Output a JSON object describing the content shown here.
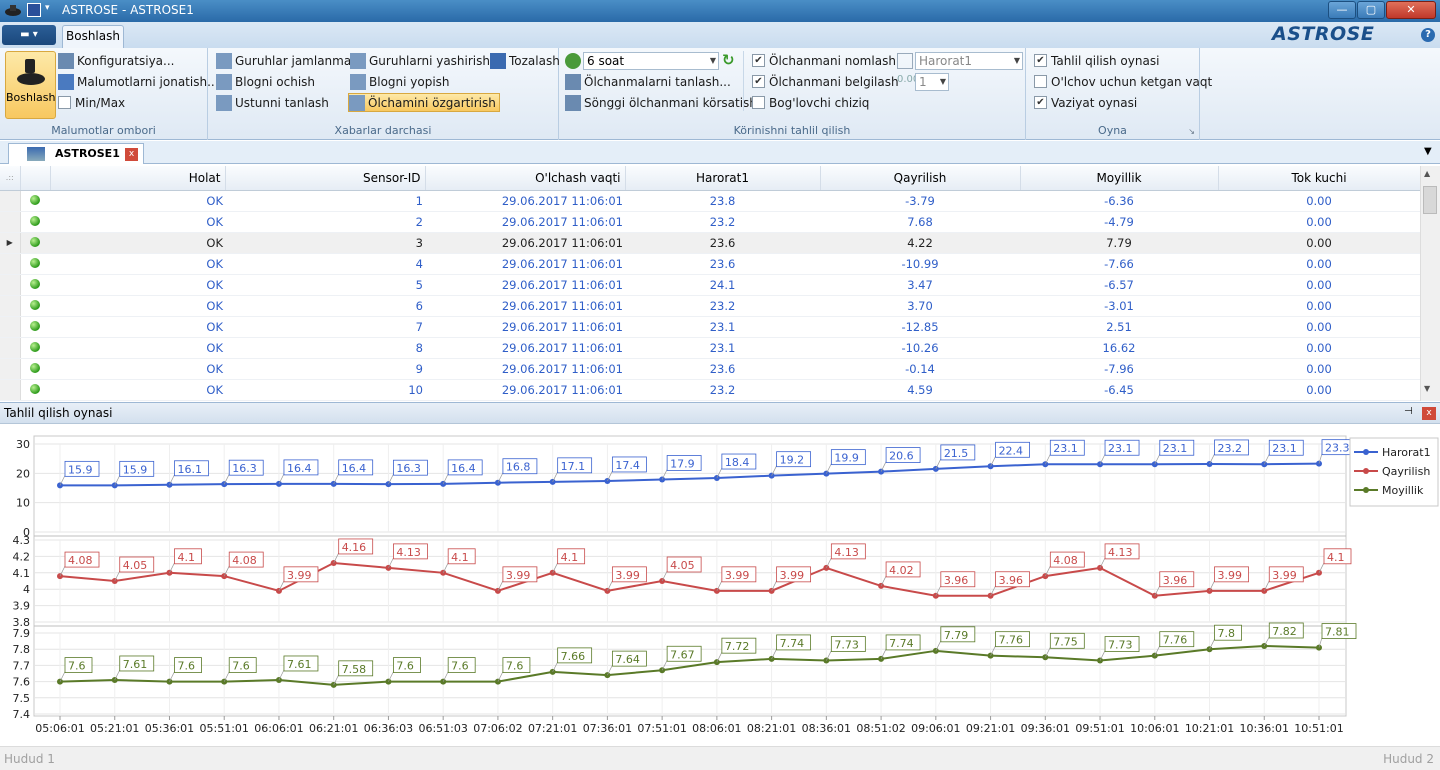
{
  "window": {
    "title": "ASTROSE - ASTROSE1",
    "minimize": "—",
    "maximize": "▢",
    "close": "✕"
  },
  "tabs": {
    "active": "Boshlash",
    "logo": "ASTROSE",
    "help": "?"
  },
  "ribbon": {
    "big_button": "Boshlash",
    "group1": {
      "label": "Malumotlar ombori",
      "items": [
        "Konfiguratsiya...",
        "Malumotlarni jonatish...",
        "Min/Max"
      ]
    },
    "group2": {
      "label": "Xabarlar darchasi",
      "col1": [
        "Guruhlar jamlanmasi",
        "Blogni ochish",
        "Ustunni tanlash"
      ],
      "col2": [
        "Guruhlarni yashirish",
        "Blogni yopish",
        "Ölchamini özgartirish"
      ],
      "col3": [
        "Tozalash"
      ]
    },
    "group3": {
      "label": "Körinishni tahlil qilish",
      "period": "6 soat",
      "items": [
        "Ölchanmalarni tanlash...",
        "Sönggi ölchanmani körsatish"
      ],
      "checks": [
        "Ölchanmani nomlash",
        "Ölchanmani belgilash",
        "Bog'lovchi chiziq"
      ],
      "sensor_combo": "Harorat1",
      "count_combo": "1"
    },
    "group4": {
      "label": "Oyna",
      "checks": [
        "Tahlil qilish oynasi",
        "O'lchov uchun ketgan vaqt",
        "Vaziyat oynasi"
      ]
    }
  },
  "document": {
    "tab": "ASTROSE1"
  },
  "table": {
    "columns": [
      "Holat",
      "Sensor-ID",
      "O'lchash vaqti",
      "Harorat1",
      "Qayrilish",
      "Moyillik",
      "Tok kuchi"
    ],
    "rows": [
      [
        "OK",
        "1",
        "29.06.2017 11:06:01",
        "23.8",
        "-3.79",
        "-6.36",
        "0.00"
      ],
      [
        "OK",
        "2",
        "29.06.2017 11:06:01",
        "23.2",
        "7.68",
        "-4.79",
        "0.00"
      ],
      [
        "OK",
        "3",
        "29.06.2017 11:06:01",
        "23.6",
        "4.22",
        "7.79",
        "0.00"
      ],
      [
        "OK",
        "4",
        "29.06.2017 11:06:01",
        "23.6",
        "-10.99",
        "-7.66",
        "0.00"
      ],
      [
        "OK",
        "5",
        "29.06.2017 11:06:01",
        "24.1",
        "3.47",
        "-6.57",
        "0.00"
      ],
      [
        "OK",
        "6",
        "29.06.2017 11:06:01",
        "23.2",
        "3.70",
        "-3.01",
        "0.00"
      ],
      [
        "OK",
        "7",
        "29.06.2017 11:06:01",
        "23.1",
        "-12.85",
        "2.51",
        "0.00"
      ],
      [
        "OK",
        "8",
        "29.06.2017 11:06:01",
        "23.1",
        "-10.26",
        "16.62",
        "0.00"
      ],
      [
        "OK",
        "9",
        "29.06.2017 11:06:01",
        "23.6",
        "-0.14",
        "-7.96",
        "0.00"
      ],
      [
        "OK",
        "10",
        "29.06.2017 11:06:01",
        "23.2",
        "4.59",
        "-6.45",
        "0.00"
      ]
    ]
  },
  "panel": {
    "title": "Tahlil qilish oynasi"
  },
  "status": {
    "left": "Hudud 1",
    "right": "Hudud 2"
  },
  "chart_data": {
    "type": "line",
    "x": [
      "05:06:01",
      "05:21:01",
      "05:36:01",
      "05:51:01",
      "06:06:01",
      "06:21:01",
      "06:36:03",
      "06:51:03",
      "07:06:02",
      "07:21:01",
      "07:36:01",
      "07:51:01",
      "08:06:01",
      "08:21:01",
      "08:36:01",
      "08:51:02",
      "09:06:01",
      "09:21:01",
      "09:36:01",
      "09:51:01",
      "10:06:01",
      "10:21:01",
      "10:36:01",
      "10:51:01"
    ],
    "series": [
      {
        "name": "Harorat1",
        "color": "#3a62d0",
        "ylim": [
          0,
          30
        ],
        "ticks": [
          "30",
          "20",
          "10",
          "0"
        ],
        "values": [
          15.9,
          15.9,
          16.1,
          16.3,
          16.4,
          16.4,
          16.3,
          16.4,
          16.8,
          17.1,
          17.4,
          17.9,
          18.4,
          19.2,
          19.9,
          20.6,
          21.5,
          22.4,
          23.1,
          23.1,
          23.1,
          23.2,
          23.1,
          23.3
        ],
        "labels": [
          "15.9",
          "15.9",
          "16.1",
          "16.3",
          "16.4",
          "16.4",
          "16.3",
          "16.4",
          "16.8",
          "17.1",
          "17.4",
          "17.9",
          "18.4",
          "19.2",
          "19.9",
          "20.6",
          "21.5",
          "22.4",
          "23.1",
          "23.1",
          "23.1",
          "23.2",
          "23.1",
          "23.3"
        ]
      },
      {
        "name": "Qayrilish",
        "color": "#c84a4a",
        "ylim": [
          3.8,
          4.3
        ],
        "ticks": [
          "4.3",
          "4.2",
          "4.1",
          "4",
          "3.9",
          "3.8"
        ],
        "values": [
          4.08,
          4.05,
          4.1,
          4.08,
          3.99,
          4.16,
          4.13,
          4.1,
          3.99,
          4.1,
          3.99,
          4.05,
          3.99,
          3.99,
          4.13,
          4.02,
          3.96,
          3.96,
          4.08,
          4.13,
          3.96,
          3.99,
          3.99,
          4.1
        ],
        "labels": [
          "4.08",
          "4.05",
          "4.1",
          "4.08",
          "3.99",
          "4.16",
          "4.13",
          "4.1",
          "3.99",
          "4.1",
          "3.99",
          "4.05",
          "3.99",
          "3.99",
          "4.13",
          "4.02",
          "3.96",
          "3.96",
          "4.08",
          "4.13",
          "3.96",
          "3.99",
          "3.99",
          "4.1"
        ]
      },
      {
        "name": "Moyillik",
        "color": "#5a7a28",
        "ylim": [
          7.4,
          7.9
        ],
        "ticks": [
          "7.9",
          "7.8",
          "7.7",
          "7.6",
          "7.5",
          "7.4"
        ],
        "values": [
          7.6,
          7.61,
          7.6,
          7.6,
          7.61,
          7.58,
          7.6,
          7.6,
          7.6,
          7.66,
          7.64,
          7.67,
          7.72,
          7.74,
          7.73,
          7.74,
          7.79,
          7.76,
          7.75,
          7.73,
          7.76,
          7.8,
          7.82,
          7.81
        ],
        "labels": [
          "7.6",
          "7.61",
          "7.6",
          "7.6",
          "7.61",
          "7.58",
          "7.6",
          "7.6",
          "7.6",
          "7.66",
          "7.64",
          "7.67",
          "7.72",
          "7.74",
          "7.73",
          "7.74",
          "7.79",
          "7.76",
          "7.75",
          "7.73",
          "7.76",
          "7.8",
          "7.82",
          "7.81"
        ]
      }
    ],
    "legend": "top-right",
    "grid": true
  }
}
